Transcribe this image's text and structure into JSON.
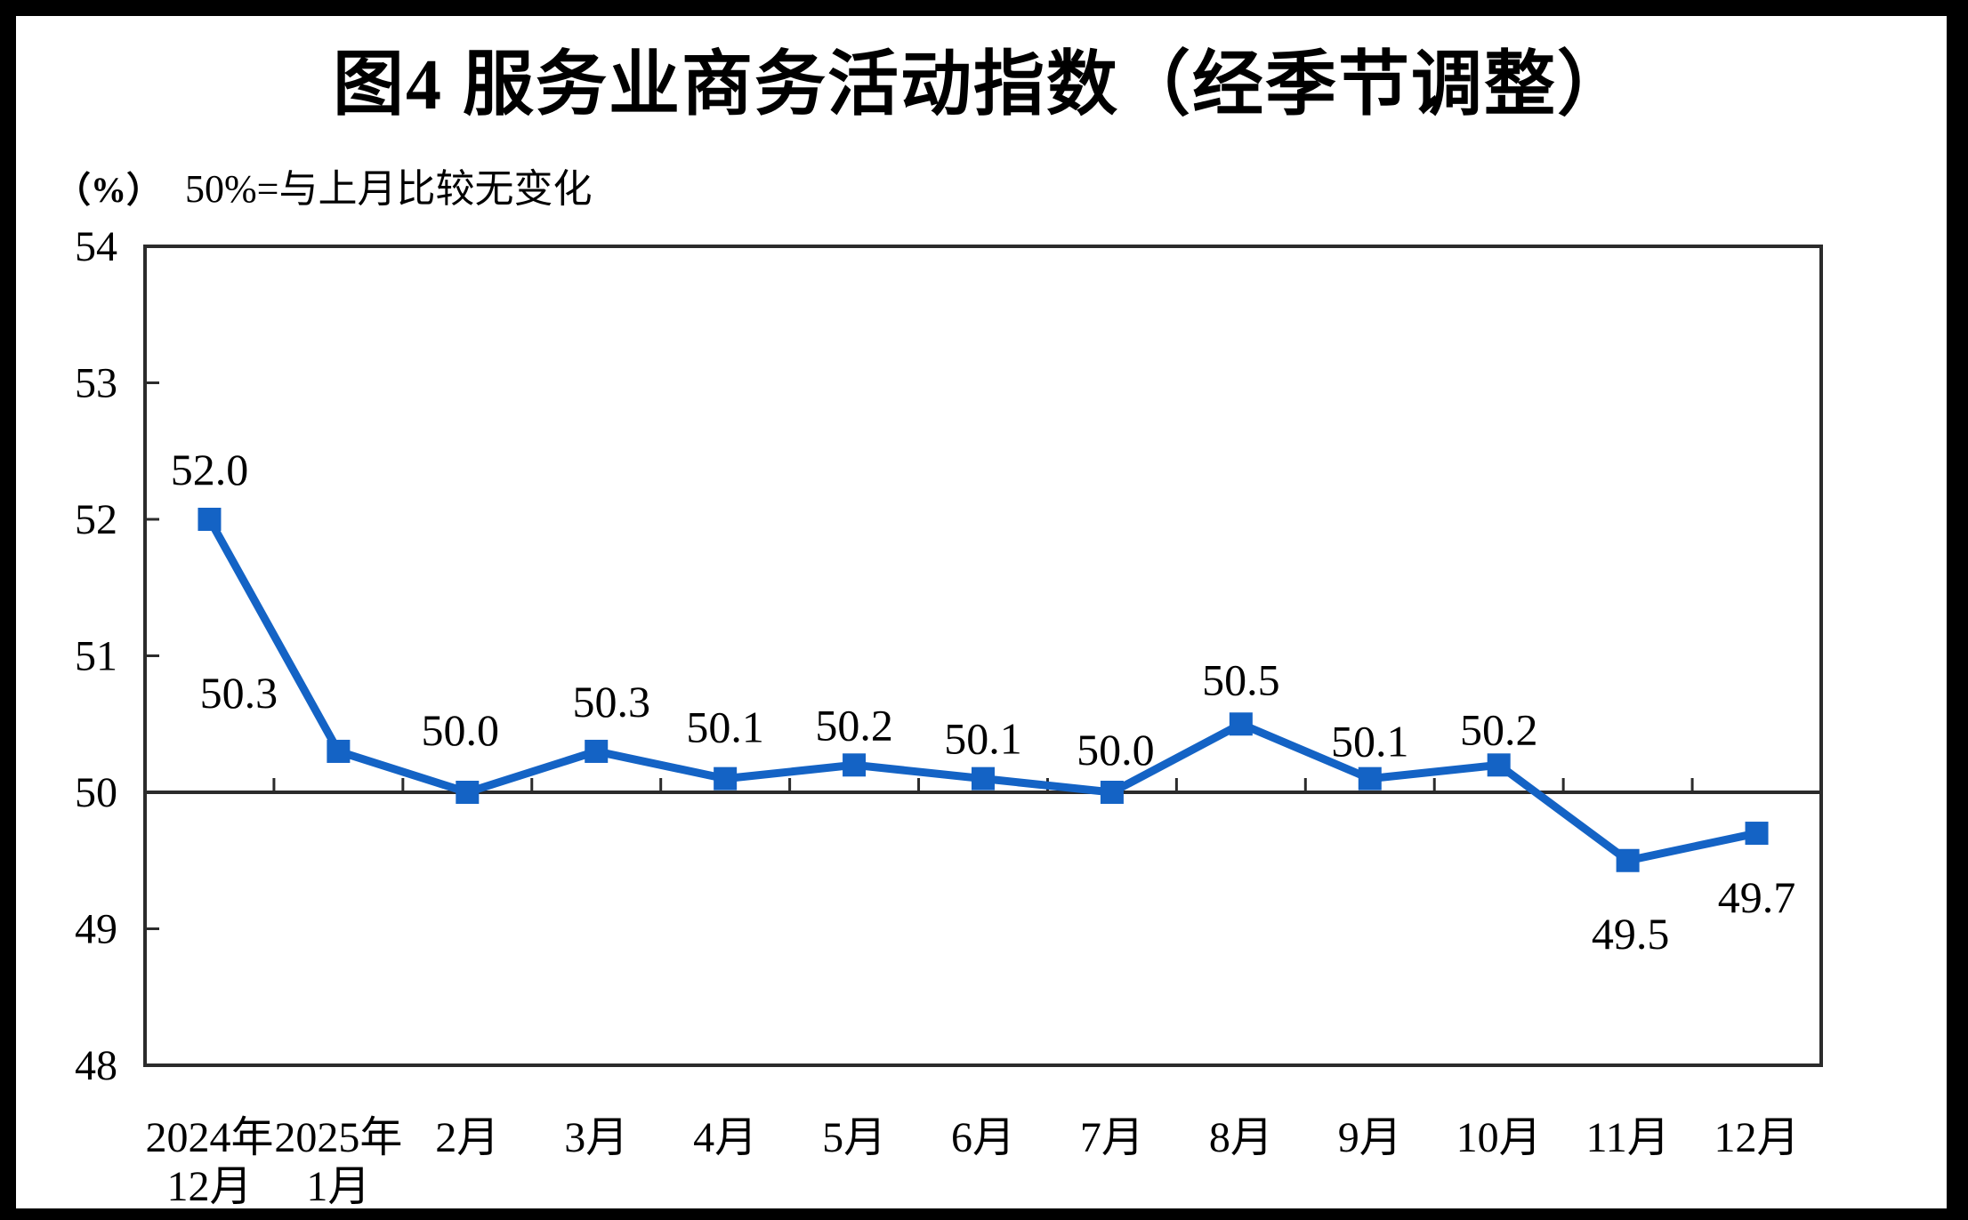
{
  "chart_data": {
    "type": "line",
    "title": "图4  服务业商务活动指数（经季节调整）",
    "unit_label": "（%）",
    "note": "50%=与上月比较无变化",
    "categories": [
      [
        "2024年",
        "12月"
      ],
      [
        "2025年",
        "1月"
      ],
      [
        "2月"
      ],
      [
        "3月"
      ],
      [
        "4月"
      ],
      [
        "5月"
      ],
      [
        "6月"
      ],
      [
        "7月"
      ],
      [
        "8月"
      ],
      [
        "9月"
      ],
      [
        "10月"
      ],
      [
        "11月"
      ],
      [
        "12月"
      ]
    ],
    "series": [
      {
        "name": "服务业商务活动指数",
        "values": [
          52.0,
          50.3,
          50.0,
          50.3,
          50.1,
          50.2,
          50.1,
          50.0,
          50.5,
          50.1,
          50.2,
          49.5,
          49.7
        ]
      }
    ],
    "data_labels": [
      "52.0",
      "50.3",
      "50.0",
      "50.3",
      "50.1",
      "50.2",
      "50.1",
      "50.0",
      "50.5",
      "50.1",
      "50.2",
      "49.5",
      "49.7"
    ],
    "ylim": [
      48,
      54
    ],
    "yticks": [
      48,
      49,
      50,
      51,
      52,
      53,
      54
    ],
    "baseline_value": 50,
    "line_color": "#1463C5",
    "axis_color": "#2B2B2B",
    "marker": "square",
    "grid": false,
    "legend_position": "none"
  }
}
